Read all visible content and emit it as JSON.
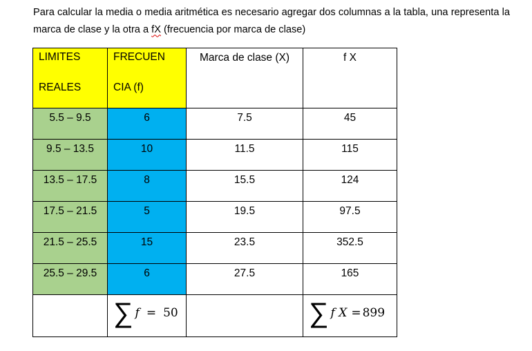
{
  "intro": {
    "text_before": "Para calcular la media o media aritmética es necesario agregar dos columnas a la tabla, una representa la marca de clase y la otra a ",
    "fx": "fX",
    "text_after": " (frecuencia por marca de clase)"
  },
  "table": {
    "headers": {
      "limites_line1": "LIMITES",
      "limites_line2": "REALES",
      "frecuencia_line1": "FRECUEN",
      "frecuencia_line2": "CIA  (f)",
      "marca": "Marca de clase (X)",
      "fx": "f X"
    },
    "rows": [
      {
        "limites": "5.5 – 9.5",
        "f": "6",
        "x": "7.5",
        "fx": "45"
      },
      {
        "limites": "9.5 – 13.5",
        "f": "10",
        "x": "11.5",
        "fx": "115"
      },
      {
        "limites": "13.5 – 17.5",
        "f": "8",
        "x": "15.5",
        "fx": "124"
      },
      {
        "limites": "17.5 – 21.5",
        "f": "5",
        "x": "19.5",
        "fx": "97.5"
      },
      {
        "limites": "21.5 – 25.5",
        "f": "15",
        "x": "23.5",
        "fx": "352.5"
      },
      {
        "limites": "25.5 – 29.5",
        "f": "6",
        "x": "27.5",
        "fx": "165"
      }
    ],
    "sums": {
      "sigma": "∑",
      "f_symbol": "f",
      "equals": "=",
      "f_total": "50",
      "fx_symbol": "f X",
      "fx_total": "899"
    },
    "colors": {
      "header_highlight": "#ffff00",
      "limites_fill": "#a9d18e",
      "frecuencia_fill": "#00b0f0"
    }
  }
}
